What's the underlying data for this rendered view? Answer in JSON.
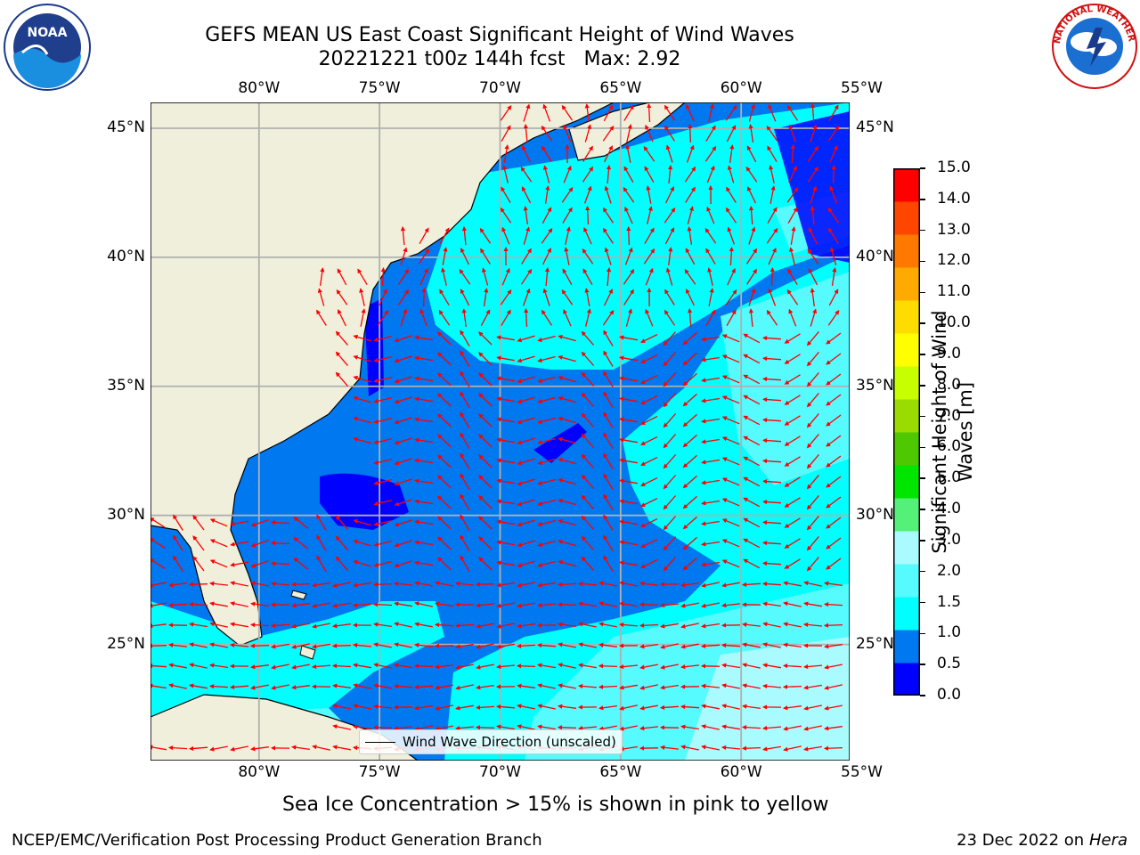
{
  "title": {
    "line1": "GEFS MEAN US East Coast Significant Height of Wind Waves",
    "line2": "20221221 t00z 144h fcst",
    "max_label": "Max: 2.92"
  },
  "logos": {
    "left": {
      "name": "noaa-logo",
      "text": "NOAA"
    },
    "right": {
      "name": "nws-logo",
      "text": "NATIONAL WEATHER SERVICE"
    }
  },
  "map": {
    "lon_labels": [
      "80°W",
      "75°W",
      "70°W",
      "65°W",
      "60°W",
      "55°W"
    ],
    "lat_labels": [
      "45°N",
      "40°N",
      "35°N",
      "30°N",
      "25°N"
    ],
    "lon_range": [
      -84.5,
      -55.5
    ],
    "lat_range": [
      20.5,
      46
    ],
    "land_color": "#efefdc",
    "arrow_color": "#ff0000",
    "grid_color": "#b0b0b0"
  },
  "legend": {
    "label": "Wind Wave Direction (unscaled)"
  },
  "colorbar": {
    "label_line1": "Significant Height of Wind",
    "label_line2": "Waves [m]",
    "ticks": [
      "0.0",
      "0.5",
      "1.0",
      "1.5",
      "2.0",
      "3.0",
      "4.0",
      "5.0",
      "6.0",
      "7.0",
      "8.0",
      "9.0",
      "10.0",
      "11.0",
      "12.0",
      "13.0",
      "14.0",
      "15.0"
    ],
    "colors": [
      "#0000ff",
      "#0078f0",
      "#00ffff",
      "#55fbff",
      "#aafbff",
      "#55f078",
      "#00e600",
      "#4ec800",
      "#9bdc00",
      "#c8ff00",
      "#ffff00",
      "#ffdc00",
      "#ffaa00",
      "#ff7800",
      "#ff4600",
      "#ff0000"
    ]
  },
  "caption": "Sea Ice Concentration > 15% is shown in pink to yellow",
  "footer": {
    "left": "NCEP/EMC/Verification Post Processing Product Generation Branch",
    "date": "23 Dec 2022 on",
    "machine": "Hera"
  }
}
